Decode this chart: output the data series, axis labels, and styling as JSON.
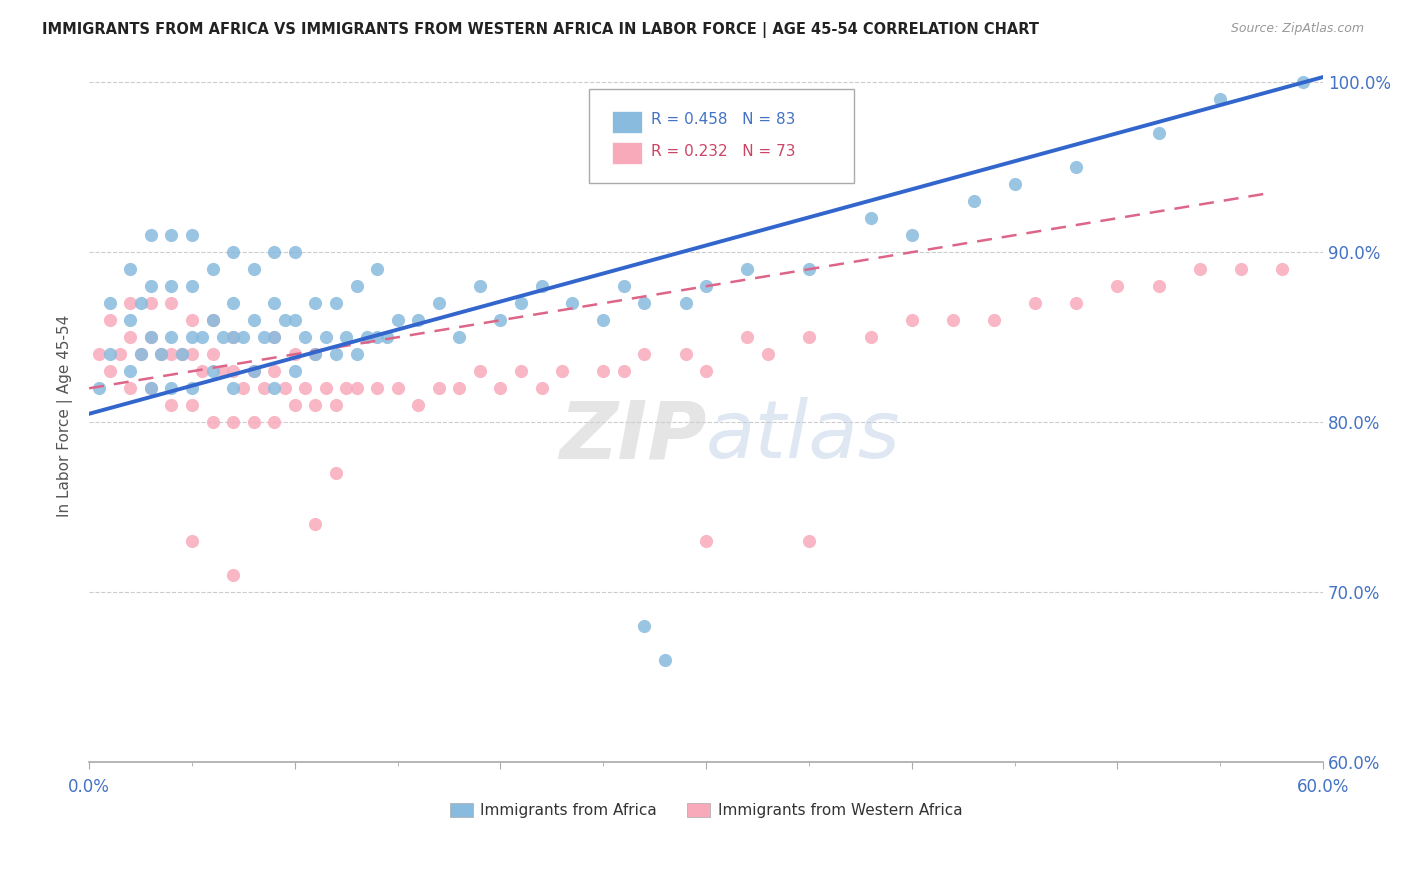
{
  "title": "IMMIGRANTS FROM AFRICA VS IMMIGRANTS FROM WESTERN AFRICA IN LABOR FORCE | AGE 45-54 CORRELATION CHART",
  "source": "Source: ZipAtlas.com",
  "ylabel": "In Labor Force | Age 45-54",
  "xlim": [
    0.0,
    0.6
  ],
  "ylim": [
    0.6,
    1.008
  ],
  "x_ticks": [
    0.0,
    0.1,
    0.2,
    0.3,
    0.4,
    0.5,
    0.6
  ],
  "y_ticks": [
    0.6,
    0.7,
    0.8,
    0.9,
    1.0
  ],
  "legend1_R": "0.458",
  "legend1_N": "83",
  "legend2_R": "0.232",
  "legend2_N": "73",
  "legend1_label": "Immigrants from Africa",
  "legend2_label": "Immigrants from Western Africa",
  "color_blue": "#88bbdd",
  "color_pink": "#f8aabb",
  "color_blue_line": "#3366cc",
  "color_pink_line": "#dd6688",
  "axis_color": "#4472c4",
  "blue_scatter_x": [
    0.005,
    0.01,
    0.01,
    0.02,
    0.02,
    0.02,
    0.025,
    0.025,
    0.03,
    0.03,
    0.03,
    0.03,
    0.035,
    0.04,
    0.04,
    0.04,
    0.04,
    0.045,
    0.05,
    0.05,
    0.05,
    0.05,
    0.055,
    0.06,
    0.06,
    0.06,
    0.065,
    0.07,
    0.07,
    0.07,
    0.07,
    0.075,
    0.08,
    0.08,
    0.08,
    0.085,
    0.09,
    0.09,
    0.09,
    0.09,
    0.095,
    0.1,
    0.1,
    0.1,
    0.105,
    0.11,
    0.11,
    0.115,
    0.12,
    0.12,
    0.125,
    0.13,
    0.13,
    0.135,
    0.14,
    0.14,
    0.145,
    0.15,
    0.16,
    0.17,
    0.18,
    0.19,
    0.2,
    0.21,
    0.22,
    0.235,
    0.25,
    0.26,
    0.27,
    0.29,
    0.3,
    0.32,
    0.35,
    0.38,
    0.4,
    0.43,
    0.45,
    0.48,
    0.52,
    0.55,
    0.59,
    0.27,
    0.28
  ],
  "blue_scatter_y": [
    0.82,
    0.84,
    0.87,
    0.83,
    0.86,
    0.89,
    0.84,
    0.87,
    0.82,
    0.85,
    0.88,
    0.91,
    0.84,
    0.82,
    0.85,
    0.88,
    0.91,
    0.84,
    0.82,
    0.85,
    0.88,
    0.91,
    0.85,
    0.83,
    0.86,
    0.89,
    0.85,
    0.82,
    0.85,
    0.87,
    0.9,
    0.85,
    0.83,
    0.86,
    0.89,
    0.85,
    0.82,
    0.85,
    0.87,
    0.9,
    0.86,
    0.83,
    0.86,
    0.9,
    0.85,
    0.84,
    0.87,
    0.85,
    0.84,
    0.87,
    0.85,
    0.84,
    0.88,
    0.85,
    0.85,
    0.89,
    0.85,
    0.86,
    0.86,
    0.87,
    0.85,
    0.88,
    0.86,
    0.87,
    0.88,
    0.87,
    0.86,
    0.88,
    0.87,
    0.87,
    0.88,
    0.89,
    0.89,
    0.92,
    0.91,
    0.93,
    0.94,
    0.95,
    0.97,
    0.99,
    1.0,
    0.68,
    0.66
  ],
  "pink_scatter_x": [
    0.005,
    0.01,
    0.01,
    0.015,
    0.02,
    0.02,
    0.02,
    0.025,
    0.03,
    0.03,
    0.03,
    0.035,
    0.04,
    0.04,
    0.04,
    0.045,
    0.05,
    0.05,
    0.05,
    0.055,
    0.06,
    0.06,
    0.06,
    0.065,
    0.07,
    0.07,
    0.07,
    0.075,
    0.08,
    0.08,
    0.085,
    0.09,
    0.09,
    0.09,
    0.095,
    0.1,
    0.1,
    0.105,
    0.11,
    0.11,
    0.115,
    0.12,
    0.125,
    0.13,
    0.14,
    0.15,
    0.16,
    0.17,
    0.18,
    0.19,
    0.2,
    0.21,
    0.22,
    0.23,
    0.25,
    0.26,
    0.27,
    0.29,
    0.3,
    0.32,
    0.33,
    0.35,
    0.38,
    0.4,
    0.42,
    0.44,
    0.46,
    0.48,
    0.5,
    0.52,
    0.54,
    0.56,
    0.58
  ],
  "pink_scatter_y": [
    0.84,
    0.83,
    0.86,
    0.84,
    0.82,
    0.85,
    0.87,
    0.84,
    0.82,
    0.85,
    0.87,
    0.84,
    0.81,
    0.84,
    0.87,
    0.84,
    0.81,
    0.84,
    0.86,
    0.83,
    0.8,
    0.84,
    0.86,
    0.83,
    0.8,
    0.83,
    0.85,
    0.82,
    0.8,
    0.83,
    0.82,
    0.8,
    0.83,
    0.85,
    0.82,
    0.81,
    0.84,
    0.82,
    0.81,
    0.84,
    0.82,
    0.81,
    0.82,
    0.82,
    0.82,
    0.82,
    0.81,
    0.82,
    0.82,
    0.83,
    0.82,
    0.83,
    0.82,
    0.83,
    0.83,
    0.83,
    0.84,
    0.84,
    0.83,
    0.85,
    0.84,
    0.85,
    0.85,
    0.86,
    0.86,
    0.86,
    0.87,
    0.87,
    0.88,
    0.88,
    0.89,
    0.89,
    0.89
  ],
  "pink_outlier_x": [
    0.05,
    0.07,
    0.12,
    0.11,
    0.3,
    0.35
  ],
  "pink_outlier_y": [
    0.73,
    0.71,
    0.77,
    0.74,
    0.73,
    0.73
  ]
}
